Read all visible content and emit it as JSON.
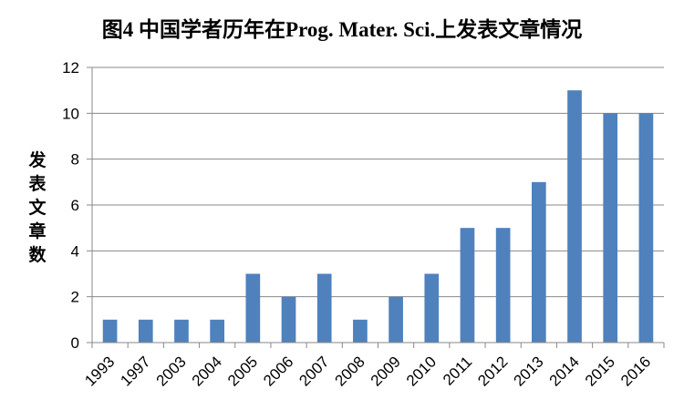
{
  "chart_data": {
    "type": "bar",
    "title": "图4 中国学者历年在Prog. Mater. Sci.上发表文章情况",
    "xlabel": "",
    "ylabel": "发表文章数",
    "categories": [
      "1993",
      "1997",
      "2003",
      "2004",
      "2005",
      "2006",
      "2007",
      "2008",
      "2009",
      "2010",
      "2011",
      "2012",
      "2013",
      "2014",
      "2015",
      "2016"
    ],
    "values": [
      1,
      1,
      1,
      1,
      3,
      2,
      3,
      1,
      2,
      3,
      5,
      5,
      7,
      11,
      10,
      10
    ],
    "ylim": [
      0,
      12
    ],
    "yticks": [
      "0",
      "2",
      "4",
      "6",
      "8",
      "10",
      "12"
    ],
    "grid": true,
    "legend": "none",
    "bar_color": "#4f81bd",
    "grid_color": "#888888",
    "axis_color": "#888888"
  }
}
